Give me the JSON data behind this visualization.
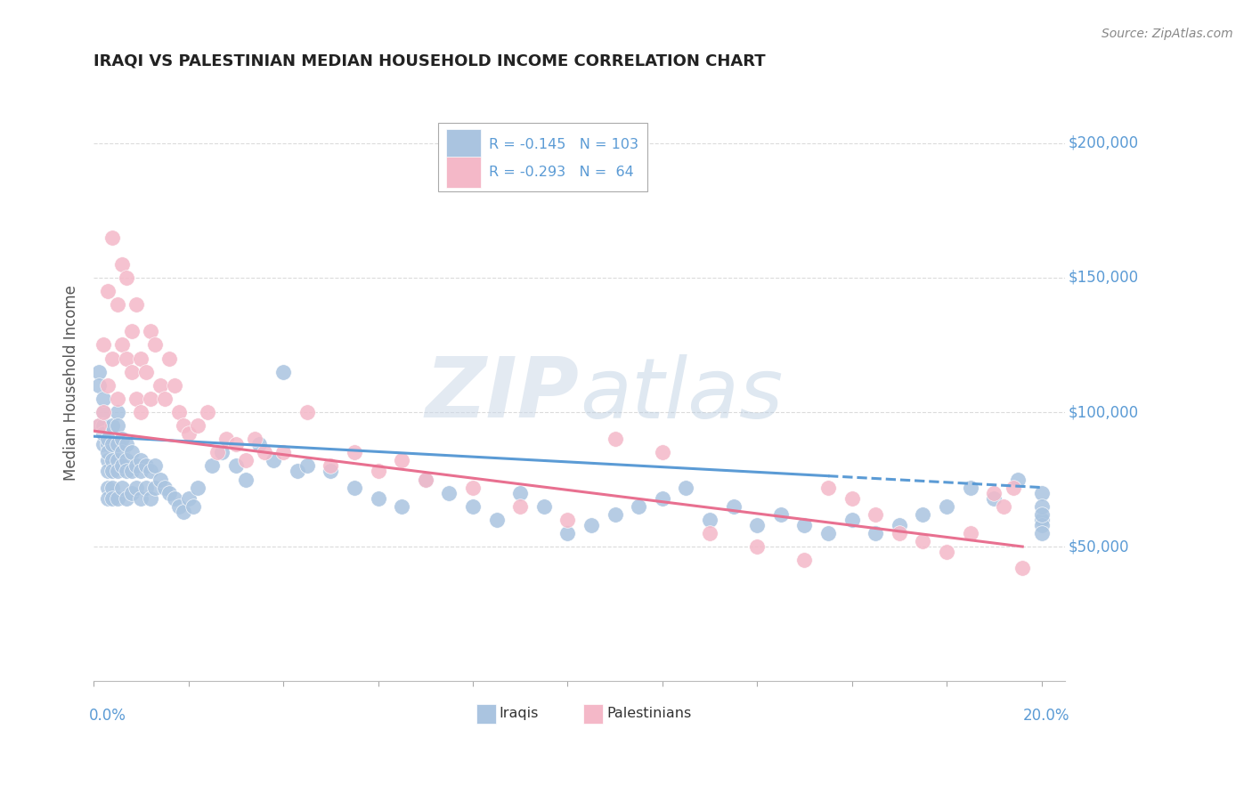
{
  "title": "IRAQI VS PALESTINIAN MEDIAN HOUSEHOLD INCOME CORRELATION CHART",
  "source": "Source: ZipAtlas.com",
  "ylabel": "Median Household Income",
  "watermark": "ZIPatlas",
  "legend": {
    "iraqi": {
      "R": -0.145,
      "N": 103,
      "color": "#aac4e0",
      "line_color": "#5b9bd5"
    },
    "palestinian": {
      "R": -0.293,
      "N": 64,
      "color": "#f4b8c8",
      "line_color": "#e87090"
    }
  },
  "background_color": "#ffffff",
  "grid_color": "#cccccc",
  "axis_label_color": "#5b9bd5",
  "title_color": "#222222",
  "source_color": "#888888",
  "ylabel_color": "#555555",
  "iraqi_x": [
    0.001,
    0.001,
    0.001,
    0.002,
    0.002,
    0.002,
    0.002,
    0.002,
    0.003,
    0.003,
    0.003,
    0.003,
    0.003,
    0.003,
    0.003,
    0.004,
    0.004,
    0.004,
    0.004,
    0.004,
    0.004,
    0.005,
    0.005,
    0.005,
    0.005,
    0.005,
    0.005,
    0.006,
    0.006,
    0.006,
    0.006,
    0.007,
    0.007,
    0.007,
    0.007,
    0.008,
    0.008,
    0.008,
    0.009,
    0.009,
    0.01,
    0.01,
    0.01,
    0.011,
    0.011,
    0.012,
    0.012,
    0.013,
    0.013,
    0.014,
    0.015,
    0.016,
    0.017,
    0.018,
    0.019,
    0.02,
    0.021,
    0.022,
    0.025,
    0.027,
    0.03,
    0.032,
    0.035,
    0.038,
    0.04,
    0.043,
    0.045,
    0.05,
    0.055,
    0.06,
    0.065,
    0.07,
    0.075,
    0.08,
    0.085,
    0.09,
    0.095,
    0.1,
    0.105,
    0.11,
    0.115,
    0.12,
    0.125,
    0.13,
    0.135,
    0.14,
    0.145,
    0.15,
    0.155,
    0.16,
    0.165,
    0.17,
    0.175,
    0.18,
    0.185,
    0.19,
    0.195,
    0.2,
    0.2,
    0.2,
    0.2,
    0.2,
    0.2
  ],
  "iraqi_y": [
    95000,
    115000,
    110000,
    100000,
    105000,
    95000,
    88000,
    92000,
    88000,
    90000,
    82000,
    85000,
    78000,
    72000,
    68000,
    95000,
    88000,
    82000,
    78000,
    72000,
    68000,
    100000,
    95000,
    88000,
    82000,
    78000,
    68000,
    90000,
    85000,
    80000,
    72000,
    88000,
    82000,
    78000,
    68000,
    85000,
    78000,
    70000,
    80000,
    72000,
    82000,
    78000,
    68000,
    80000,
    72000,
    78000,
    68000,
    80000,
    72000,
    75000,
    72000,
    70000,
    68000,
    65000,
    63000,
    68000,
    65000,
    72000,
    80000,
    85000,
    80000,
    75000,
    88000,
    82000,
    115000,
    78000,
    80000,
    78000,
    72000,
    68000,
    65000,
    75000,
    70000,
    65000,
    60000,
    70000,
    65000,
    55000,
    58000,
    62000,
    65000,
    68000,
    72000,
    60000,
    65000,
    58000,
    62000,
    58000,
    55000,
    60000,
    55000,
    58000,
    62000,
    65000,
    72000,
    68000,
    75000,
    70000,
    60000,
    58000,
    65000,
    62000,
    55000
  ],
  "palest_x": [
    0.001,
    0.002,
    0.002,
    0.003,
    0.003,
    0.004,
    0.004,
    0.005,
    0.005,
    0.006,
    0.006,
    0.007,
    0.007,
    0.008,
    0.008,
    0.009,
    0.009,
    0.01,
    0.01,
    0.011,
    0.012,
    0.012,
    0.013,
    0.014,
    0.015,
    0.016,
    0.017,
    0.018,
    0.019,
    0.02,
    0.022,
    0.024,
    0.026,
    0.028,
    0.03,
    0.032,
    0.034,
    0.036,
    0.04,
    0.045,
    0.05,
    0.055,
    0.06,
    0.065,
    0.07,
    0.08,
    0.09,
    0.1,
    0.11,
    0.12,
    0.13,
    0.14,
    0.15,
    0.155,
    0.16,
    0.165,
    0.17,
    0.175,
    0.18,
    0.185,
    0.19,
    0.192,
    0.194,
    0.196
  ],
  "palest_y": [
    95000,
    125000,
    100000,
    145000,
    110000,
    165000,
    120000,
    140000,
    105000,
    155000,
    125000,
    150000,
    120000,
    130000,
    115000,
    140000,
    105000,
    120000,
    100000,
    115000,
    130000,
    105000,
    125000,
    110000,
    105000,
    120000,
    110000,
    100000,
    95000,
    92000,
    95000,
    100000,
    85000,
    90000,
    88000,
    82000,
    90000,
    85000,
    85000,
    100000,
    80000,
    85000,
    78000,
    82000,
    75000,
    72000,
    65000,
    60000,
    90000,
    85000,
    55000,
    50000,
    45000,
    72000,
    68000,
    62000,
    55000,
    52000,
    48000,
    55000,
    70000,
    65000,
    72000,
    42000
  ],
  "iraqi_line": {
    "x0": 0.0,
    "x1": 0.2,
    "x_dash_start": 0.155,
    "y0": 91000,
    "y1": 72000
  },
  "palest_line": {
    "x0": 0.0,
    "x1": 0.196,
    "y0": 93000,
    "y1": 50000
  },
  "xlim": [
    0.0,
    0.205
  ],
  "ylim": [
    0,
    222000
  ],
  "ytick_vals": [
    50000,
    100000,
    150000,
    200000
  ],
  "ytick_labels": [
    "$50,000",
    "$100,000",
    "$150,000",
    "$200,000"
  ]
}
